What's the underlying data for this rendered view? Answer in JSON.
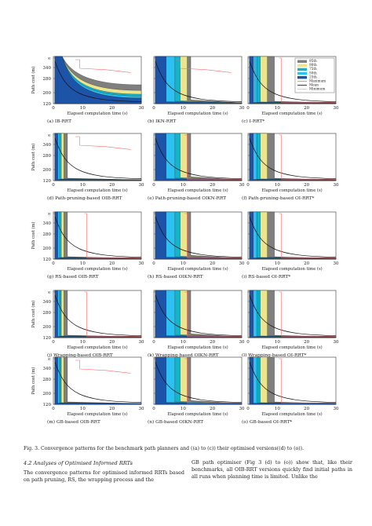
{
  "figure": {
    "y_ticks": [
      "∞",
      "340",
      "280",
      "200",
      "120"
    ],
    "x_ticks": [
      "0",
      "10",
      "20",
      "30"
    ],
    "y_label": "Path cost (m)",
    "x_label": "Elapsed computation time (s)",
    "legend": [
      "95th",
      "90th",
      "75th",
      "50th",
      "25th",
      "Maximum",
      "Mean",
      "Minimum"
    ],
    "colors": {
      "p95": "#7f7f7f",
      "p90": "#ece58f",
      "p75": "#17b4c8",
      "p50": "#2cc1f0",
      "p25": "#1d54a8",
      "max": "#ff6b6b",
      "mean": "#111111",
      "min": "#bbbbbb"
    },
    "panels": [
      {
        "label": "(a) IB-RRT",
        "style": "flat",
        "vline": 0.05,
        "redcurve": true
      },
      {
        "label": "(b) IKN-RRT",
        "style": "wide",
        "vline": 0.12,
        "redcurve": true
      },
      {
        "label": "(c) I-RRT*",
        "style": "narrow",
        "vline": 0.08,
        "redcurve": false
      },
      {
        "label": "(d) Path-pruning-based OIB-RRT",
        "style": "spike",
        "vline": 0.05,
        "redcurve": true
      },
      {
        "label": "(e) Path-pruning-based OIKN-RRT",
        "style": "wide",
        "vline": 0.12,
        "redcurve": false
      },
      {
        "label": "(f) Path-pruning-based OI-RRT*",
        "style": "narrow",
        "vline": 0.1,
        "redcurve": false
      },
      {
        "label": "(g) RS-based OIB-RRT",
        "style": "spike",
        "vline": 0.05,
        "redcurve": false
      },
      {
        "label": "(h) RS-based OIKN-RRT",
        "style": "wide",
        "vline": 0.12,
        "redcurve": false
      },
      {
        "label": "(i) RS-based OI-RRT*",
        "style": "narrow",
        "vline": 0.1,
        "redcurve": false
      },
      {
        "label": "(j) Wrapping-based OIB-RRT",
        "style": "spike",
        "vline": 0.08,
        "redcurve": false
      },
      {
        "label": "(k) Wrapping-based OIKN-RRT",
        "style": "wide",
        "vline": 0.14,
        "redcurve": false
      },
      {
        "label": "(l) Wrapping-based OI-RRT*",
        "style": "narrow",
        "vline": 0.12,
        "redcurve": false
      },
      {
        "label": "(m) GB-based OIB-RRT",
        "style": "spike",
        "vline": 0.08,
        "redcurve": true
      },
      {
        "label": "(n) GB-based OIKN-RRT",
        "style": "wide",
        "vline": 0.14,
        "redcurve": false
      },
      {
        "label": "(o) GB-based OI-RRT*",
        "style": "narrow",
        "vline": 0.12,
        "redcurve": false
      }
    ]
  },
  "caption": "Fig. 3. Convergence patterns for the benchmark path planners and ((a) to (c)) their optimised versions((d) to (o)).",
  "section_title": "4.2 Analyses of Optimised Informed RRTs",
  "left_text": "The convergence patterns for optimised informed RRTs based on path pruning, RS, the wrapping process and the",
  "right_text": "GB path optimiser (Fig 3 (d) to (o)) show that, like their benchmarks, all OIB-RRT versions quickly find initial paths in all runs when planning time is limited. Unlike the"
}
